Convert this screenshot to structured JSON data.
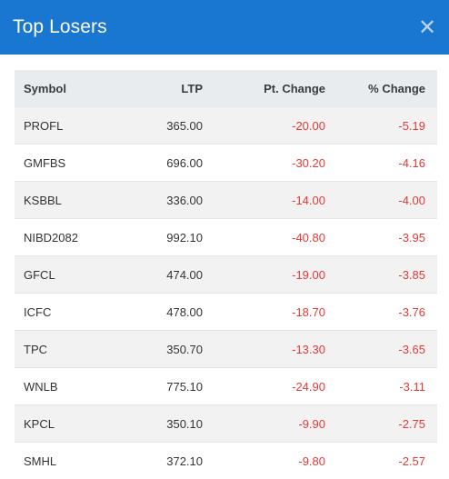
{
  "modal": {
    "title": "Top Losers",
    "close_icon": "close-icon"
  },
  "table": {
    "headers": [
      "Symbol",
      "LTP",
      "Pt. Change",
      "% Change"
    ],
    "rows": [
      [
        "PROFL",
        "365.00",
        "-20.00",
        "-5.19"
      ],
      [
        "GMFBS",
        "696.00",
        "-30.20",
        "-4.16"
      ],
      [
        "KSBBL",
        "336.00",
        "-14.00",
        "-4.00"
      ],
      [
        "NIBD2082",
        "992.10",
        "-40.80",
        "-3.95"
      ],
      [
        "GFCL",
        "474.00",
        "-19.00",
        "-3.85"
      ],
      [
        "ICFC",
        "478.00",
        "-18.70",
        "-3.76"
      ],
      [
        "TPC",
        "350.70",
        "-13.30",
        "-3.65"
      ],
      [
        "WNLB",
        "775.10",
        "-24.90",
        "-3.11"
      ],
      [
        "KPCL",
        "350.10",
        "-9.90",
        "-2.75"
      ],
      [
        "SMHL",
        "372.10",
        "-9.80",
        "-2.57"
      ]
    ]
  },
  "colors": {
    "header_bg": "#1977d2",
    "negative": "#e53935"
  }
}
